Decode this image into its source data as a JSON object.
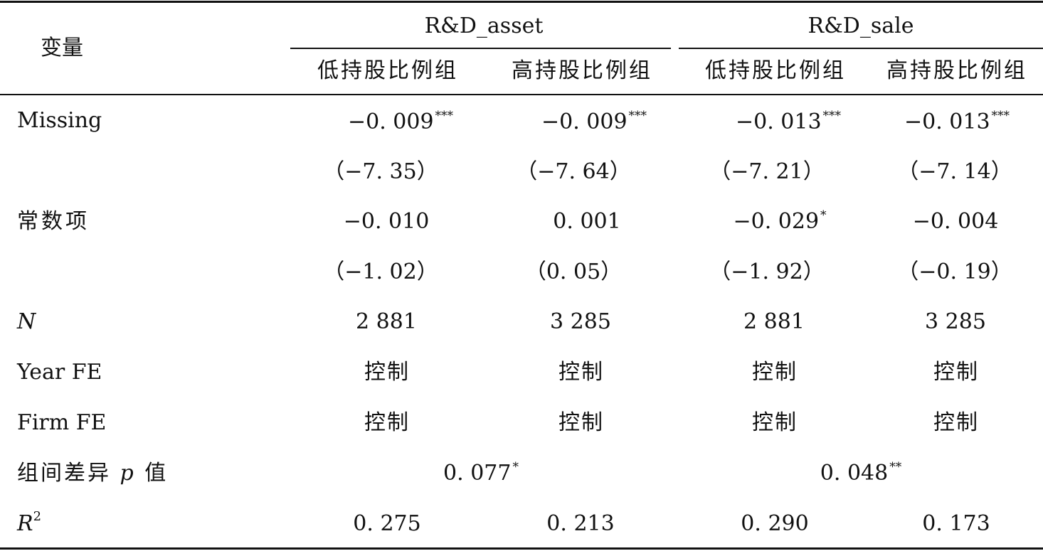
{
  "header": {
    "variable_label": "变量",
    "groups": [
      "R&D_asset",
      "R&D_sale"
    ],
    "subgroups": [
      "低持股比例组",
      "高持股比例组",
      "低持股比例组",
      "高持股比例组"
    ]
  },
  "rows": {
    "missing": {
      "label": "Missing",
      "coefs": [
        {
          "v": "−0. 009",
          "s": "***"
        },
        {
          "v": "−0. 009",
          "s": "***"
        },
        {
          "v": "−0. 013",
          "s": "***"
        },
        {
          "v": "−0. 013",
          "s": "***"
        }
      ],
      "tstats": [
        "（−7. 35）",
        "（−7. 64）",
        "（−7. 21）",
        "（−7. 14）"
      ]
    },
    "constant": {
      "label": "常数项",
      "coefs": [
        {
          "v": "−0. 010",
          "s": ""
        },
        {
          "v": "0. 001",
          "s": ""
        },
        {
          "v": "−0. 029",
          "s": "*"
        },
        {
          "v": "−0. 004",
          "s": ""
        }
      ],
      "tstats": [
        "（−1. 02）",
        "（0. 05）",
        "（−1. 92）",
        "（−0. 19）"
      ]
    },
    "n": {
      "label": "N",
      "values": [
        "2 881",
        "3 285",
        "2 881",
        "3 285"
      ]
    },
    "year_fe": {
      "label": "Year FE",
      "values": [
        "控制",
        "控制",
        "控制",
        "控制"
      ]
    },
    "firm_fe": {
      "label": "Firm FE",
      "values": [
        "控制",
        "控制",
        "控制",
        "控制"
      ]
    },
    "pvalue": {
      "label_pre": "组间差异 ",
      "label_p": "p",
      "label_post": " 值",
      "values": [
        {
          "v": "0. 077",
          "s": "*"
        },
        {
          "v": "0. 048",
          "s": "**"
        }
      ]
    },
    "r2": {
      "label_r": "R",
      "label_sup": "2",
      "values": [
        "0. 275",
        "0. 213",
        "0. 290",
        "0. 173"
      ]
    }
  }
}
